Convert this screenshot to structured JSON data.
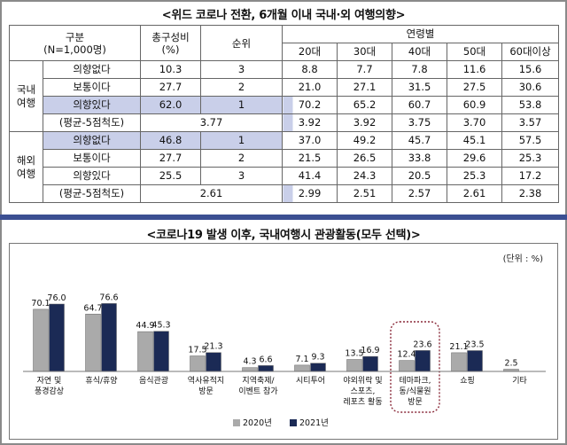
{
  "table_title": "<위드 코로나 전환, 6개월 이내 국내·외 여행의향>",
  "table": {
    "header": {
      "category": "구분",
      "sample": "(N=1,000명)",
      "total_line1": "총구성비",
      "total_line2": "(%)",
      "rank": "순위",
      "age_group": "연령별",
      "ages": [
        "20대",
        "30대",
        "40대",
        "50대",
        "60대이상"
      ]
    },
    "groups": [
      {
        "name_line1": "국내",
        "name_line2": "여행",
        "rows": [
          {
            "label": "의향없다",
            "total": "10.3",
            "rank": "3",
            "ages": [
              "8.8",
              "7.7",
              "7.8",
              "11.6",
              "15.6"
            ]
          },
          {
            "label": "보통이다",
            "total": "27.7",
            "rank": "2",
            "ages": [
              "21.0",
              "27.1",
              "31.5",
              "27.5",
              "30.6"
            ]
          },
          {
            "label": "의향있다",
            "total": "62.0",
            "rank": "1",
            "ages": [
              "70.2",
              "65.2",
              "60.7",
              "60.9",
              "53.8"
            ]
          }
        ],
        "avg": {
          "label": "(평균-5점척도)",
          "value": "3.77",
          "ages": [
            "3.92",
            "3.92",
            "3.75",
            "3.70",
            "3.57"
          ]
        }
      },
      {
        "name_line1": "해외",
        "name_line2": "여행",
        "rows": [
          {
            "label": "의향없다",
            "total": "46.8",
            "rank": "1",
            "ages": [
              "37.0",
              "49.2",
              "45.7",
              "45.1",
              "57.5"
            ]
          },
          {
            "label": "보통이다",
            "total": "27.7",
            "rank": "2",
            "ages": [
              "21.5",
              "26.5",
              "33.8",
              "29.6",
              "25.3"
            ]
          },
          {
            "label": "의향있다",
            "total": "25.5",
            "rank": "3",
            "ages": [
              "41.4",
              "24.3",
              "20.5",
              "25.3",
              "17.2"
            ]
          }
        ],
        "avg": {
          "label": "(평균-5점척도)",
          "value": "2.61",
          "ages": [
            "2.99",
            "2.51",
            "2.57",
            "2.61",
            "2.38"
          ]
        }
      }
    ]
  },
  "colors": {
    "series_2020": "#aaaaaa",
    "series_2021": "#1b2a55",
    "divider": "#3b4f92",
    "highlight": "#c9cfe9",
    "highlight_box": "#8a2a3a"
  },
  "chart_data": {
    "type": "bar",
    "title": "<코로나19 발생 이후, 국내여행시 관광활동(모두 선택)>",
    "unit_label": "(단위 : %)",
    "categories": [
      [
        "자연 및",
        "풍경감상"
      ],
      [
        "휴식/휴양"
      ],
      [
        "음식관광"
      ],
      [
        "역사유적지",
        "방문"
      ],
      [
        "지역축제/",
        "이벤트 참가"
      ],
      [
        "시티투어"
      ],
      [
        "야외위락 및",
        "스포츠,",
        "레포츠 활동"
      ],
      [
        "테마파크,",
        "동/식물원",
        "방문"
      ],
      [
        "쇼핑"
      ],
      [
        "기타"
      ]
    ],
    "series": [
      {
        "name": "2020년",
        "values": [
          70.1,
          64.7,
          44.9,
          17.5,
          4.3,
          7.1,
          13.5,
          12.4,
          21.1,
          2.5
        ]
      },
      {
        "name": "2021년",
        "values": [
          76.0,
          76.6,
          45.3,
          21.3,
          6.6,
          9.3,
          16.9,
          23.6,
          23.5,
          null
        ]
      }
    ],
    "highlighted_category": 7,
    "ylim": [
      0,
      80
    ],
    "grid": false,
    "legend": "bottom-center"
  }
}
